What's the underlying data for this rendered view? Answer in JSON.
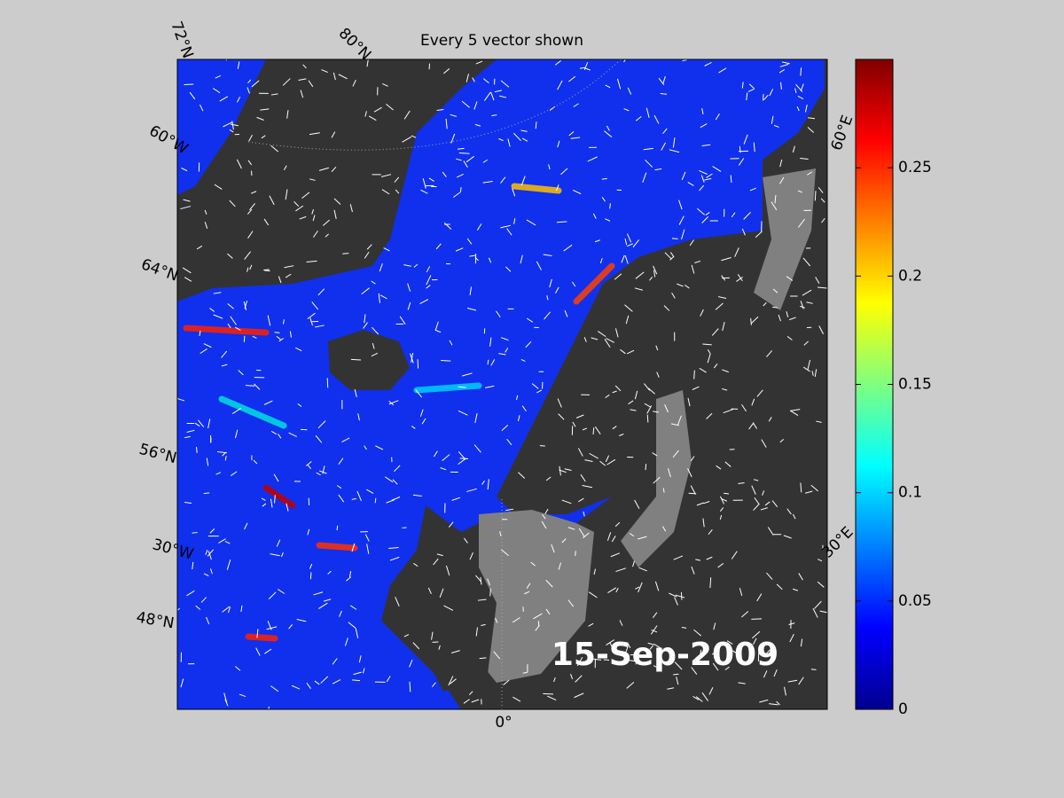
{
  "map": {
    "title": "Every 5 vector shown",
    "date_label": "15-Sep-2009",
    "graticule_labels": [
      "72°N",
      "80°N",
      "60°W",
      "64°N",
      "56°N",
      "30°W",
      "48°N",
      "0°",
      "30°E",
      "60°E"
    ]
  },
  "colorbar": {
    "colormap": "jet",
    "lim": [
      0,
      0.3
    ],
    "ticks": [
      0,
      0.05,
      0.1,
      0.15,
      0.2,
      0.25
    ]
  }
}
